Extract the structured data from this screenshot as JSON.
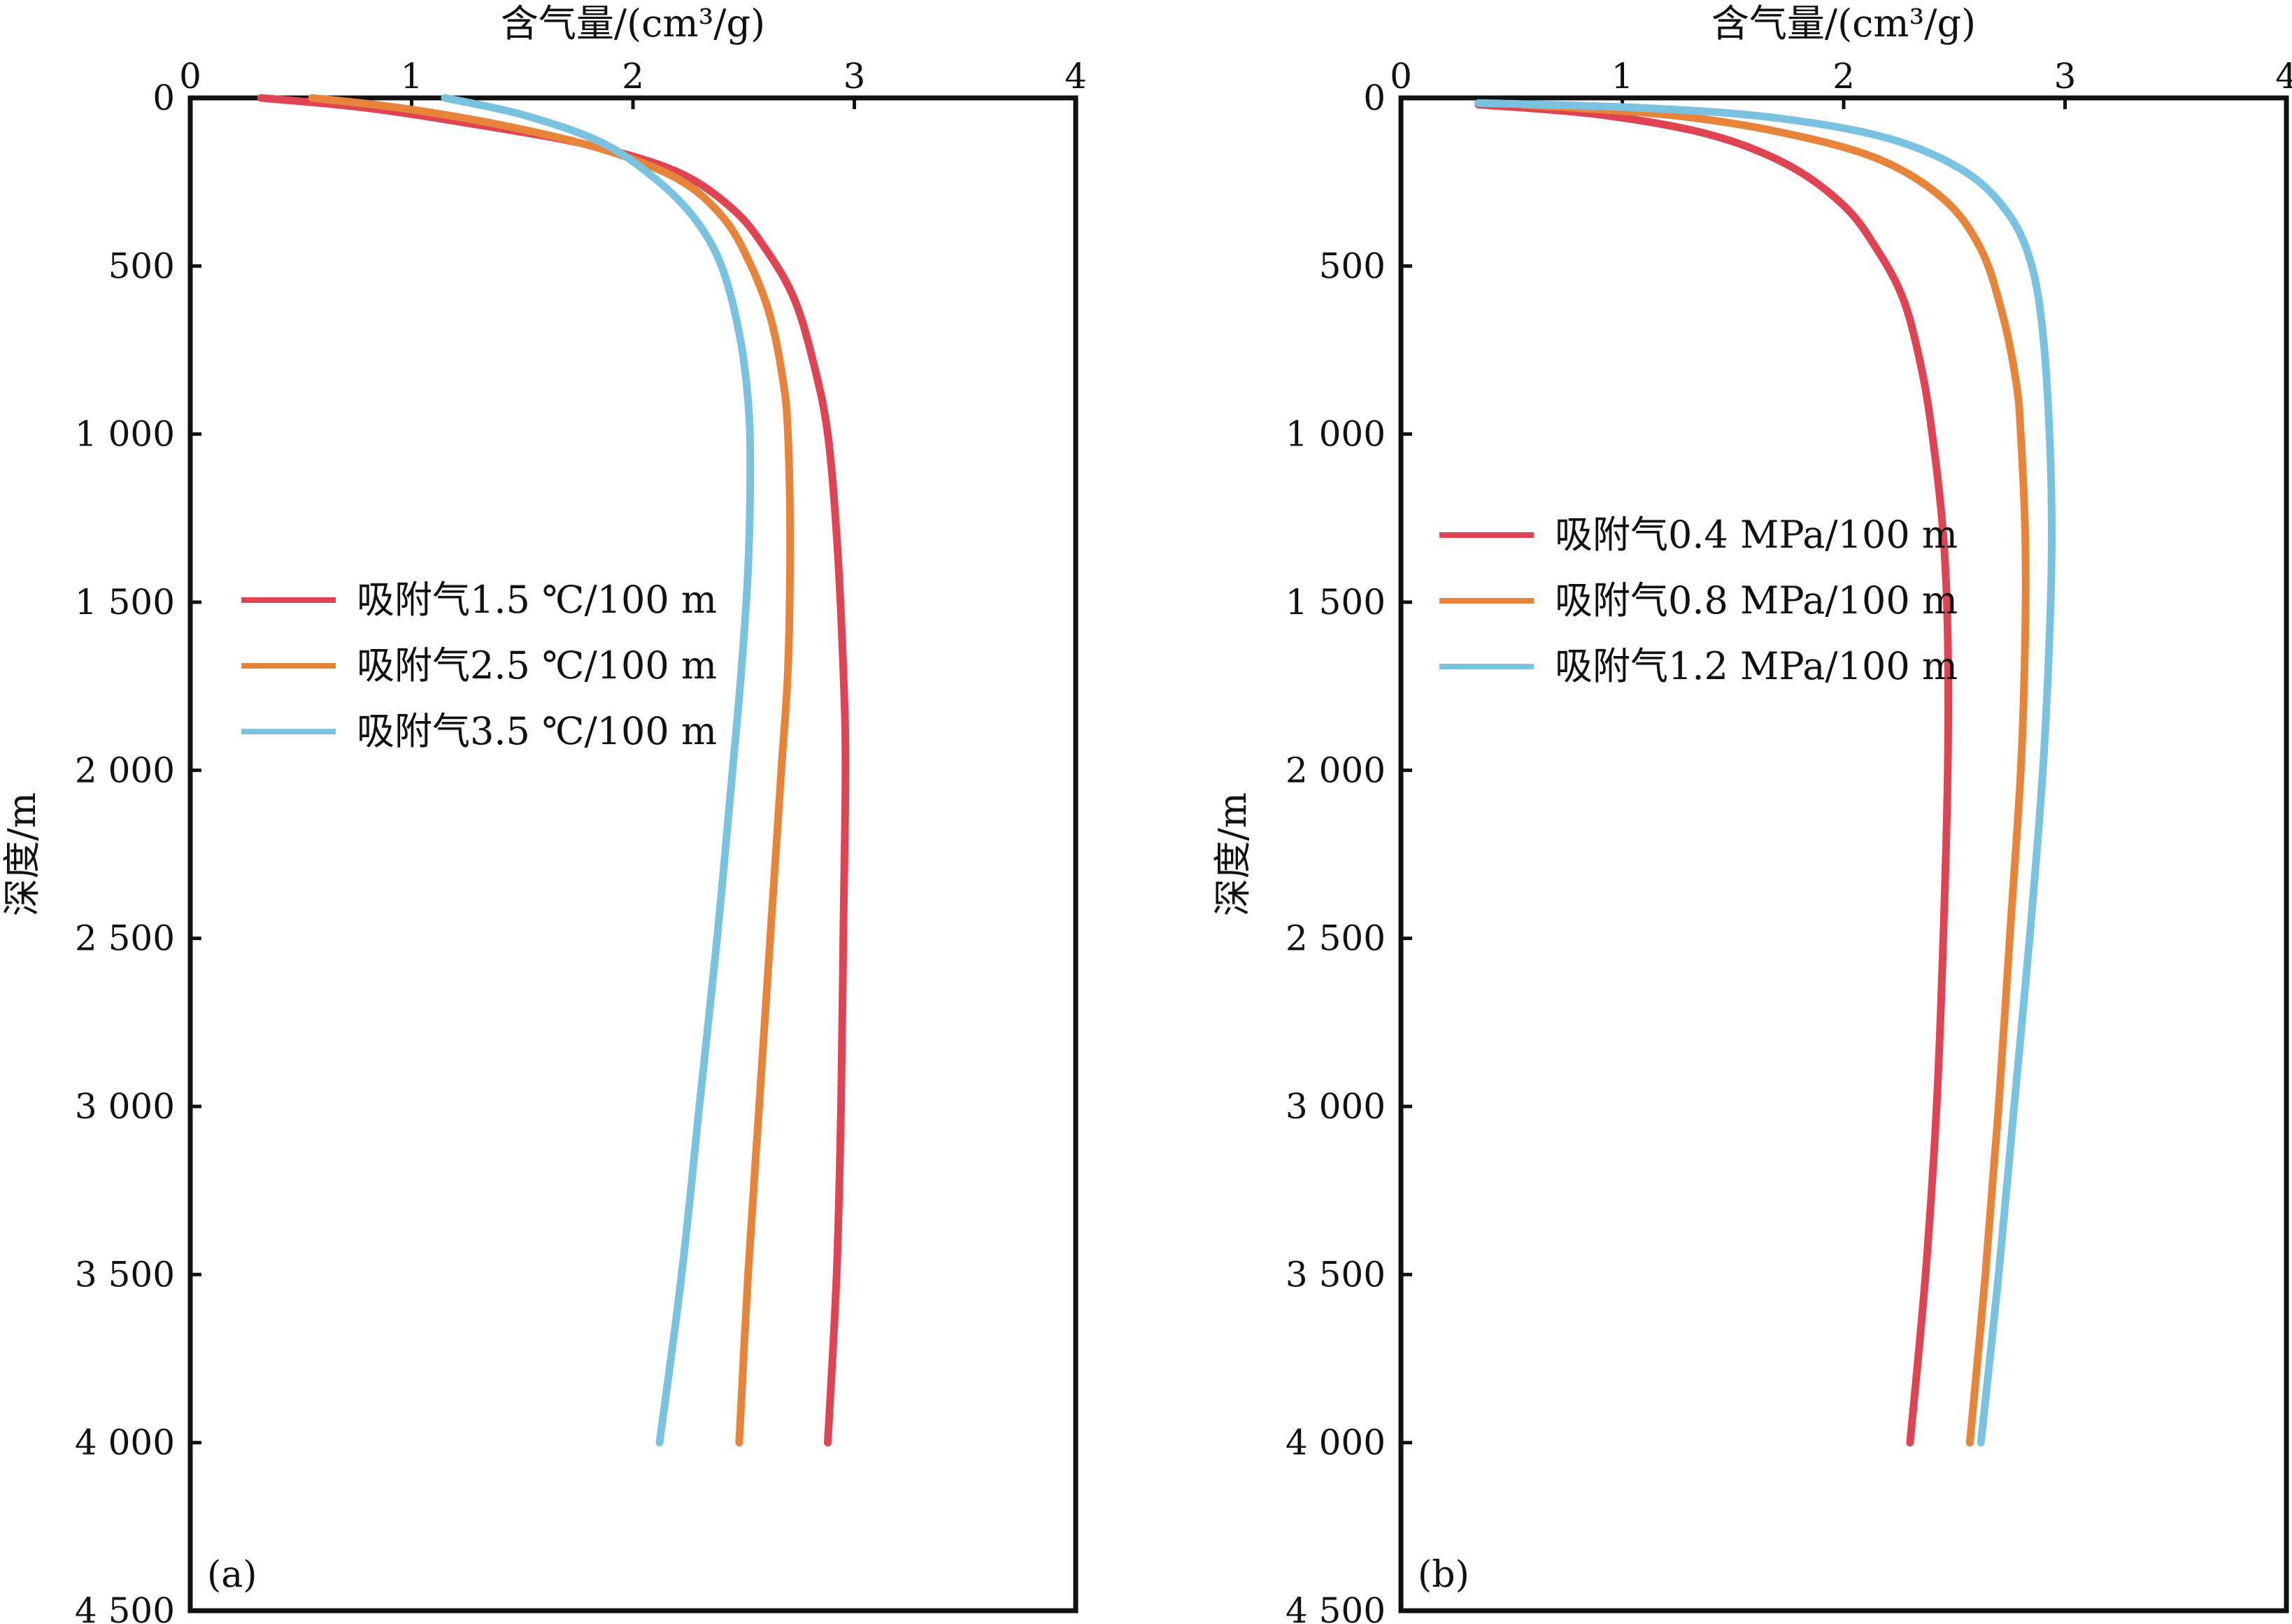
{
  "chart_data": [
    {
      "type": "line",
      "panel_label": "(a)",
      "xlabel": "含气量/(cm³/g)",
      "ylabel": "深度/m",
      "x_axis_position": "top",
      "y_axis_inverted": true,
      "xlim": [
        0,
        4
      ],
      "ylim": [
        0,
        4500
      ],
      "x_ticks": [
        0,
        1,
        2,
        3,
        4
      ],
      "x_tick_labels": [
        "0",
        "1",
        "2",
        "3",
        "4"
      ],
      "y_ticks": [
        0,
        500,
        1000,
        1500,
        2000,
        2500,
        3000,
        3500,
        4000,
        4500
      ],
      "y_tick_labels": [
        "0",
        "500",
        "1 000",
        "1 500",
        "2 000",
        "2 500",
        "3 000",
        "3 500",
        "4 000",
        "4 500"
      ],
      "grid": false,
      "legend_position": "center-left",
      "series": [
        {
          "name": "吸附气1.5 ℃/100 m",
          "color": "#e04452",
          "points": [
            [
              0.32,
              0
            ],
            [
              0.8,
              30
            ],
            [
              1.3,
              80
            ],
            [
              1.8,
              140
            ],
            [
              2.2,
              220
            ],
            [
              2.45,
              330
            ],
            [
              2.6,
              450
            ],
            [
              2.73,
              600
            ],
            [
              2.82,
              800
            ],
            [
              2.88,
              1000
            ],
            [
              2.92,
              1300
            ],
            [
              2.95,
              1700
            ],
            [
              2.96,
              2000
            ],
            [
              2.95,
              2500
            ],
            [
              2.94,
              3000
            ],
            [
              2.92,
              3500
            ],
            [
              2.88,
              4000
            ]
          ]
        },
        {
          "name": "吸附气2.5 ℃/100 m",
          "color": "#e8843a",
          "points": [
            [
              0.55,
              0
            ],
            [
              0.95,
              30
            ],
            [
              1.4,
              80
            ],
            [
              1.85,
              150
            ],
            [
              2.2,
              240
            ],
            [
              2.4,
              350
            ],
            [
              2.52,
              480
            ],
            [
              2.62,
              650
            ],
            [
              2.68,
              850
            ],
            [
              2.7,
              1000
            ],
            [
              2.71,
              1300
            ],
            [
              2.7,
              1700
            ],
            [
              2.67,
              2000
            ],
            [
              2.62,
              2500
            ],
            [
              2.57,
              3000
            ],
            [
              2.52,
              3500
            ],
            [
              2.48,
              4000
            ]
          ]
        },
        {
          "name": "吸附气3.5 ℃/100 m",
          "color": "#7ac3e0",
          "points": [
            [
              1.15,
              0
            ],
            [
              1.5,
              50
            ],
            [
              1.85,
              130
            ],
            [
              2.1,
              240
            ],
            [
              2.28,
              360
            ],
            [
              2.4,
              500
            ],
            [
              2.48,
              700
            ],
            [
              2.52,
              900
            ],
            [
              2.53,
              1100
            ],
            [
              2.52,
              1400
            ],
            [
              2.49,
              1700
            ],
            [
              2.45,
              2000
            ],
            [
              2.38,
              2500
            ],
            [
              2.3,
              3000
            ],
            [
              2.22,
              3500
            ],
            [
              2.12,
              4000
            ]
          ]
        }
      ]
    },
    {
      "type": "line",
      "panel_label": "(b)",
      "xlabel": "含气量/(cm³/g)",
      "ylabel": "深度/m",
      "x_axis_position": "top",
      "y_axis_inverted": true,
      "xlim": [
        0,
        4
      ],
      "ylim": [
        0,
        4500
      ],
      "x_ticks": [
        0,
        1,
        2,
        3,
        4
      ],
      "x_tick_labels": [
        "0",
        "1",
        "2",
        "3",
        "4"
      ],
      "y_ticks": [
        0,
        500,
        1000,
        1500,
        2000,
        2500,
        3000,
        3500,
        4000,
        4500
      ],
      "y_tick_labels": [
        "0",
        "500",
        "1 000",
        "1 500",
        "2 000",
        "2 500",
        "3 000",
        "3 500",
        "4 000",
        "4 500"
      ],
      "grid": false,
      "legend_position": "center-left",
      "series": [
        {
          "name": "吸附气0.4 MPa/100 m",
          "color": "#e04452",
          "points": [
            [
              0.35,
              20
            ],
            [
              0.9,
              50
            ],
            [
              1.4,
              110
            ],
            [
              1.75,
              200
            ],
            [
              2.0,
              320
            ],
            [
              2.15,
              450
            ],
            [
              2.27,
              600
            ],
            [
              2.35,
              800
            ],
            [
              2.4,
              1000
            ],
            [
              2.45,
              1300
            ],
            [
              2.47,
              1600
            ],
            [
              2.47,
              2000
            ],
            [
              2.45,
              2500
            ],
            [
              2.42,
              3000
            ],
            [
              2.37,
              3500
            ],
            [
              2.3,
              4000
            ]
          ]
        },
        {
          "name": "吸附气0.8 MPa/100 m",
          "color": "#e8843a",
          "points": [
            [
              0.55,
              20
            ],
            [
              1.2,
              50
            ],
            [
              1.7,
              100
            ],
            [
              2.15,
              180
            ],
            [
              2.45,
              300
            ],
            [
              2.62,
              450
            ],
            [
              2.72,
              650
            ],
            [
              2.78,
              850
            ],
            [
              2.8,
              1000
            ],
            [
              2.82,
              1300
            ],
            [
              2.82,
              1600
            ],
            [
              2.8,
              2000
            ],
            [
              2.75,
              2500
            ],
            [
              2.7,
              3000
            ],
            [
              2.64,
              3500
            ],
            [
              2.57,
              4000
            ]
          ]
        },
        {
          "name": "吸附气1.2 MPa/100 m",
          "color": "#7ac3e0",
          "points": [
            [
              0.35,
              15
            ],
            [
              1.1,
              30
            ],
            [
              1.7,
              60
            ],
            [
              2.2,
              120
            ],
            [
              2.55,
              220
            ],
            [
              2.75,
              350
            ],
            [
              2.85,
              500
            ],
            [
              2.9,
              700
            ],
            [
              2.93,
              1000
            ],
            [
              2.94,
              1300
            ],
            [
              2.93,
              1600
            ],
            [
              2.9,
              2000
            ],
            [
              2.84,
              2500
            ],
            [
              2.77,
              3000
            ],
            [
              2.7,
              3500
            ],
            [
              2.62,
              4000
            ]
          ]
        }
      ]
    }
  ]
}
